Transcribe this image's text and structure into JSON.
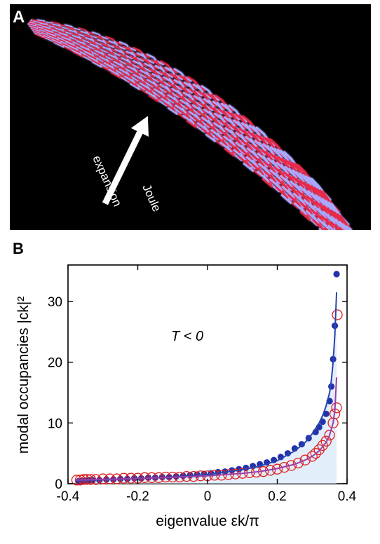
{
  "panel_a": {
    "label": "A",
    "arrow_text_line1": "Joule",
    "arrow_text_line2": "expansion",
    "colors": {
      "background": "#000000",
      "lattice_red": "#e8294a",
      "lattice_blue": "#a8a8ff",
      "arrow": "#ffffff"
    }
  },
  "panel_b": {
    "label": "B",
    "annotation": "T < 0"
  },
  "chart_data": {
    "type": "scatter",
    "xlabel": "eigenvalue εk/π",
    "ylabel": "modal occupancies |ck|²",
    "xlim": [
      -0.4,
      0.4
    ],
    "ylim": [
      0,
      36
    ],
    "x_ticks": [
      "-0.4",
      "-0.2",
      "0",
      "0.2",
      "0.4"
    ],
    "y_ticks": [
      "0",
      "10",
      "20",
      "30"
    ],
    "grid": false,
    "legend": "none",
    "series": [
      {
        "marker": "filled-circle",
        "color": "#2233aa",
        "x": [
          -0.37,
          -0.36,
          -0.35,
          -0.34,
          -0.33,
          -0.31,
          -0.29,
          -0.27,
          -0.25,
          -0.23,
          -0.21,
          -0.19,
          -0.17,
          -0.15,
          -0.13,
          -0.11,
          -0.09,
          -0.07,
          -0.05,
          -0.03,
          -0.01,
          0.01,
          0.03,
          0.05,
          0.07,
          0.09,
          0.11,
          0.13,
          0.15,
          0.17,
          0.19,
          0.21,
          0.23,
          0.25,
          0.27,
          0.29,
          0.31,
          0.32,
          0.33,
          0.34,
          0.35,
          0.355,
          0.36,
          0.365,
          0.37
        ],
        "y": [
          0.4,
          0.5,
          0.5,
          0.6,
          0.6,
          0.6,
          0.7,
          0.7,
          0.8,
          0.8,
          0.9,
          0.9,
          1.0,
          1.0,
          1.1,
          1.1,
          1.2,
          1.3,
          1.4,
          1.5,
          1.6,
          1.7,
          1.9,
          2.0,
          2.2,
          2.4,
          2.6,
          2.9,
          3.2,
          3.5,
          3.9,
          4.4,
          5.0,
          5.8,
          6.5,
          7.5,
          8.5,
          9.3,
          10.2,
          11.5,
          13.6,
          16.0,
          20.5,
          26.0,
          34.5
        ]
      },
      {
        "marker": "open-circle",
        "color": "#e02020",
        "x": [
          -0.375,
          -0.365,
          -0.355,
          -0.345,
          -0.335,
          -0.32,
          -0.3,
          -0.28,
          -0.26,
          -0.24,
          -0.22,
          -0.2,
          -0.18,
          -0.16,
          -0.14,
          -0.12,
          -0.1,
          -0.08,
          -0.06,
          -0.04,
          -0.02,
          0.0,
          0.02,
          0.04,
          0.06,
          0.08,
          0.1,
          0.12,
          0.14,
          0.16,
          0.18,
          0.2,
          0.22,
          0.24,
          0.26,
          0.28,
          0.3,
          0.31,
          0.32,
          0.33,
          0.34,
          0.35,
          0.36,
          0.365,
          0.37,
          0.372
        ],
        "y": [
          0.6,
          0.6,
          0.7,
          0.7,
          0.7,
          0.7,
          0.8,
          0.8,
          0.8,
          0.9,
          0.9,
          0.9,
          1.0,
          1.0,
          1.0,
          1.1,
          1.1,
          1.1,
          1.2,
          1.2,
          1.3,
          1.3,
          1.4,
          1.4,
          1.5,
          1.6,
          1.7,
          1.8,
          1.9,
          2.0,
          2.2,
          2.4,
          2.7,
          3.0,
          3.4,
          3.9,
          4.5,
          5.0,
          5.6,
          6.3,
          7.0,
          8.0,
          10.0,
          11.5,
          12.5,
          27.8
        ]
      },
      {
        "marker": "line",
        "color": "#2a44b0",
        "x": [
          -0.38,
          -0.3,
          -0.2,
          -0.1,
          0.0,
          0.1,
          0.15,
          0.2,
          0.25,
          0.28,
          0.3,
          0.32,
          0.33,
          0.34,
          0.35,
          0.355,
          0.36,
          0.365,
          0.37
        ],
        "y": [
          0.5,
          0.65,
          0.85,
          1.1,
          1.5,
          2.3,
          2.9,
          3.8,
          5.4,
          6.8,
          8.2,
          10.0,
          11.2,
          12.8,
          15.0,
          17.0,
          20.0,
          24.5,
          31.5
        ]
      },
      {
        "marker": "line",
        "color": "#9a3fa8",
        "x": [
          -0.38,
          -0.3,
          -0.2,
          -0.1,
          0.0,
          0.1,
          0.15,
          0.2,
          0.25,
          0.28,
          0.3,
          0.32,
          0.34,
          0.35,
          0.36,
          0.365,
          0.37
        ],
        "y": [
          0.6,
          0.7,
          0.85,
          1.05,
          1.3,
          1.7,
          2.0,
          2.5,
          3.2,
          3.9,
          4.5,
          5.4,
          6.8,
          8.0,
          10.0,
          12.0,
          17.5
        ]
      }
    ]
  }
}
